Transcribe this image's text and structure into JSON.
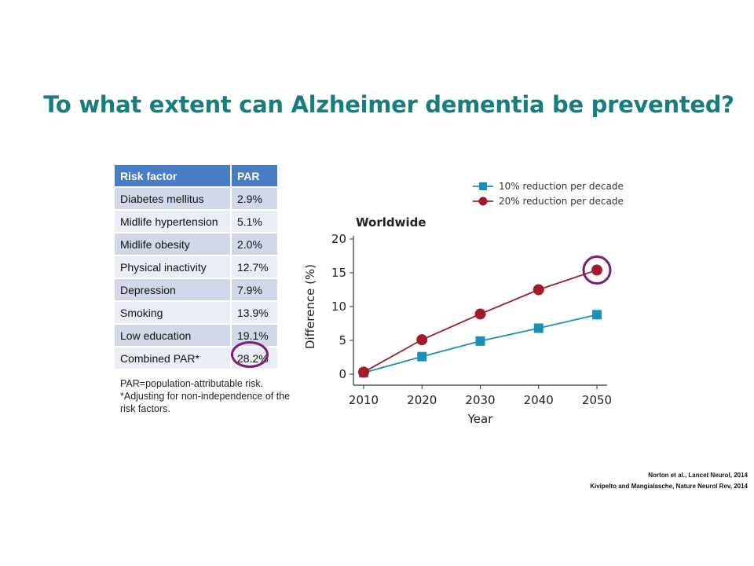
{
  "title": "To what extent can Alzheimer dementia be prevented?",
  "table": {
    "headers": [
      "Risk factor",
      "PAR"
    ],
    "rows": [
      {
        "factor": "Diabetes mellitus",
        "par": "2.9%"
      },
      {
        "factor": "Midlife hypertension",
        "par": "5.1%"
      },
      {
        "factor": "Midlife obesity",
        "par": "2.0%"
      },
      {
        "factor": "Physical inactivity",
        "par": "12.7%"
      },
      {
        "factor": "Depression",
        "par": "7.9%"
      },
      {
        "factor": "Smoking",
        "par": "13.9%"
      },
      {
        "factor": "Low education",
        "par": "19.1%"
      },
      {
        "factor": "Combined PAR*",
        "par": "28.2%"
      }
    ],
    "note_lines": [
      "PAR=population-attributable risk.",
      "*Adjusting for non-independence of the",
      "risk factors."
    ]
  },
  "chart_data": {
    "type": "line",
    "title": "Worldwide",
    "xlabel": "Year",
    "ylabel": "Difference (%)",
    "x": [
      2010,
      2020,
      2030,
      2040,
      2050
    ],
    "ylim": [
      0,
      20
    ],
    "yticks": [
      0,
      5,
      10,
      15,
      20
    ],
    "legend_position": "top-right",
    "series": [
      {
        "name": "10% reduction per decade",
        "values": [
          0.2,
          2.6,
          4.9,
          6.8,
          8.8
        ],
        "color": "#1a8fb8",
        "marker": "square"
      },
      {
        "name": "20% reduction per decade",
        "values": [
          0.3,
          5.1,
          8.9,
          12.5,
          15.4
        ],
        "color": "#a01c2c",
        "marker": "circle"
      }
    ],
    "highlight_color": "#7a1f6e"
  },
  "references": [
    "Norton et al., Lancet Neurol, 2014",
    "Kivipelto and Mangialasche, Nature Neurol Rev, 2014"
  ]
}
